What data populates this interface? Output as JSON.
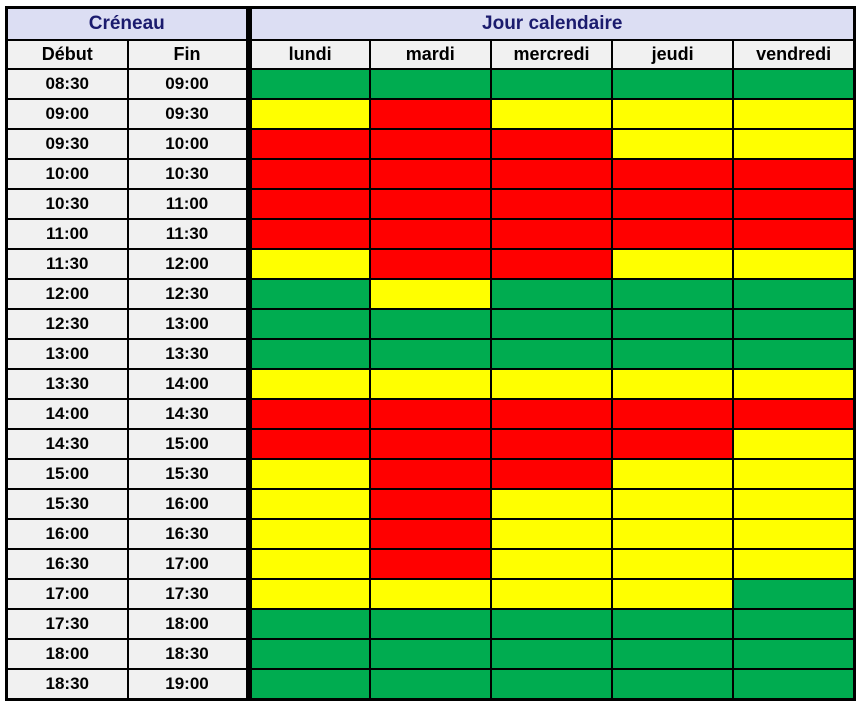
{
  "colors": {
    "green": "#00AC50",
    "yellow": "#FFFF00",
    "red": "#FF0000",
    "header_bg": "#DCDEF3",
    "header_text": "#1B1B6E",
    "label_bg": "#F1F1F1",
    "border": "#000000"
  },
  "chart_data": {
    "type": "heatmap",
    "title_left": "Créneau",
    "title_right": "Jour calendaire",
    "time_columns": [
      "Début",
      "Fin"
    ],
    "day_columns": [
      "lundi",
      "mardi",
      "mercredi",
      "jeudi",
      "vendredi"
    ],
    "cell_states": [
      "green",
      "yellow",
      "red"
    ],
    "rows": [
      {
        "debut": "08:30",
        "fin": "09:00",
        "cells": [
          "green",
          "green",
          "green",
          "green",
          "green"
        ]
      },
      {
        "debut": "09:00",
        "fin": "09:30",
        "cells": [
          "yellow",
          "red",
          "yellow",
          "yellow",
          "yellow"
        ]
      },
      {
        "debut": "09:30",
        "fin": "10:00",
        "cells": [
          "red",
          "red",
          "red",
          "yellow",
          "yellow"
        ]
      },
      {
        "debut": "10:00",
        "fin": "10:30",
        "cells": [
          "red",
          "red",
          "red",
          "red",
          "red"
        ]
      },
      {
        "debut": "10:30",
        "fin": "11:00",
        "cells": [
          "red",
          "red",
          "red",
          "red",
          "red"
        ]
      },
      {
        "debut": "11:00",
        "fin": "11:30",
        "cells": [
          "red",
          "red",
          "red",
          "red",
          "red"
        ]
      },
      {
        "debut": "11:30",
        "fin": "12:00",
        "cells": [
          "yellow",
          "red",
          "red",
          "yellow",
          "yellow"
        ]
      },
      {
        "debut": "12:00",
        "fin": "12:30",
        "cells": [
          "green",
          "yellow",
          "green",
          "green",
          "green"
        ]
      },
      {
        "debut": "12:30",
        "fin": "13:00",
        "cells": [
          "green",
          "green",
          "green",
          "green",
          "green"
        ]
      },
      {
        "debut": "13:00",
        "fin": "13:30",
        "cells": [
          "green",
          "green",
          "green",
          "green",
          "green"
        ]
      },
      {
        "debut": "13:30",
        "fin": "14:00",
        "cells": [
          "yellow",
          "yellow",
          "yellow",
          "yellow",
          "yellow"
        ]
      },
      {
        "debut": "14:00",
        "fin": "14:30",
        "cells": [
          "red",
          "red",
          "red",
          "red",
          "red"
        ]
      },
      {
        "debut": "14:30",
        "fin": "15:00",
        "cells": [
          "red",
          "red",
          "red",
          "red",
          "yellow"
        ]
      },
      {
        "debut": "15:00",
        "fin": "15:30",
        "cells": [
          "yellow",
          "red",
          "red",
          "yellow",
          "yellow"
        ]
      },
      {
        "debut": "15:30",
        "fin": "16:00",
        "cells": [
          "yellow",
          "red",
          "yellow",
          "yellow",
          "yellow"
        ]
      },
      {
        "debut": "16:00",
        "fin": "16:30",
        "cells": [
          "yellow",
          "red",
          "yellow",
          "yellow",
          "yellow"
        ]
      },
      {
        "debut": "16:30",
        "fin": "17:00",
        "cells": [
          "yellow",
          "red",
          "yellow",
          "yellow",
          "yellow"
        ]
      },
      {
        "debut": "17:00",
        "fin": "17:30",
        "cells": [
          "yellow",
          "yellow",
          "yellow",
          "yellow",
          "green"
        ]
      },
      {
        "debut": "17:30",
        "fin": "18:00",
        "cells": [
          "green",
          "green",
          "green",
          "green",
          "green"
        ]
      },
      {
        "debut": "18:00",
        "fin": "18:30",
        "cells": [
          "green",
          "green",
          "green",
          "green",
          "green"
        ]
      },
      {
        "debut": "18:30",
        "fin": "19:00",
        "cells": [
          "green",
          "green",
          "green",
          "green",
          "green"
        ]
      }
    ]
  }
}
